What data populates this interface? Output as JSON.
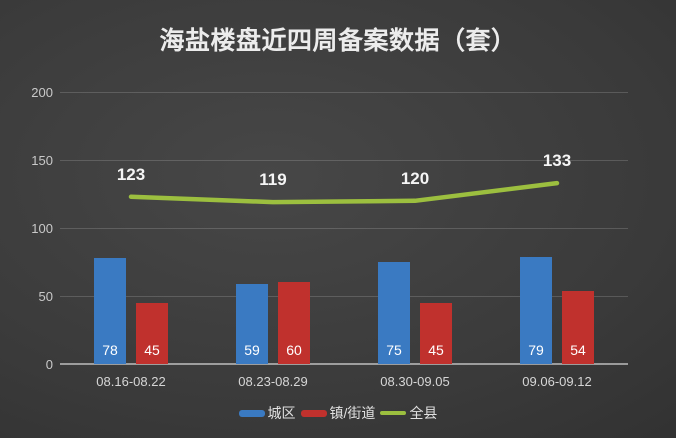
{
  "title": "海盐楼盘近四周备案数据（套）",
  "chart_data": {
    "type": "combo",
    "categories": [
      "08.16-08.22",
      "08.23-08.29",
      "08.30-09.05",
      "09.06-09.12"
    ],
    "series": [
      {
        "name": "城区",
        "type": "bar",
        "color": "#3a7ac2",
        "values": [
          78,
          59,
          75,
          79
        ]
      },
      {
        "name": "镇/街道",
        "type": "bar",
        "color": "#c0312d",
        "values": [
          45,
          60,
          45,
          54
        ]
      },
      {
        "name": "全县",
        "type": "line",
        "color": "#9cbf3f",
        "values": [
          123,
          119,
          120,
          133
        ]
      }
    ],
    "ylim": [
      0,
      200
    ],
    "yticks": [
      0,
      50,
      100,
      150,
      200
    ],
    "grid": true,
    "legend_position": "bottom"
  }
}
